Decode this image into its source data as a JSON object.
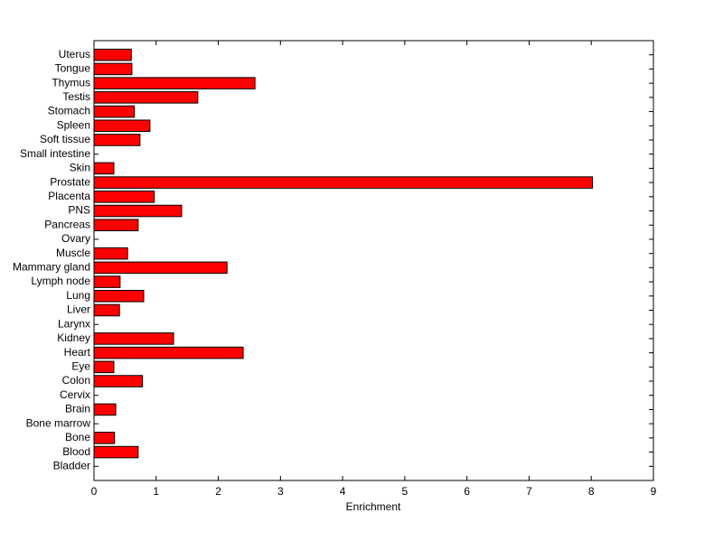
{
  "chart_data": {
    "type": "barh",
    "x_label": "Enrichment",
    "categories": [
      "Uterus",
      "Tongue",
      "Thymus",
      "Testis",
      "Stomach",
      "Spleen",
      "Soft tissue",
      "Small intestine",
      "Skin",
      "Prostate",
      "Placenta",
      "PNS",
      "Pancreas",
      "Ovary",
      "Muscle",
      "Mammary gland",
      "Lymph node",
      "Lung",
      "Liver",
      "Larynx",
      "Kidney",
      "Heart",
      "Eye",
      "Colon",
      "Cervix",
      "Brain",
      "Bone marrow",
      "Bone",
      "Blood",
      "Bladder"
    ],
    "values": [
      0.6,
      0.61,
      2.59,
      1.67,
      0.65,
      0.9,
      0.74,
      0,
      0.32,
      8.02,
      0.97,
      1.41,
      0.71,
      0,
      0.54,
      2.14,
      0.42,
      0.8,
      0.41,
      0,
      1.28,
      2.4,
      0.32,
      0.78,
      0,
      0.35,
      0,
      0.33,
      0.71,
      0
    ],
    "color": "#ff0000",
    "xlim": [
      0,
      9
    ],
    "xticks": [
      0,
      1,
      2,
      3,
      4,
      5,
      6,
      7,
      8,
      9
    ]
  }
}
